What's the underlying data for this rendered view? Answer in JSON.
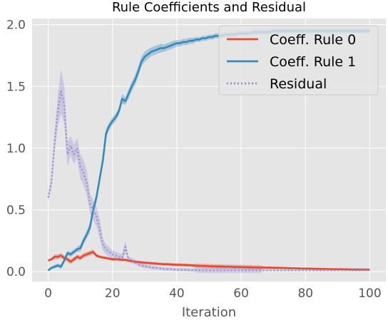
{
  "chart_data": {
    "type": "line",
    "title": "Rule Coefficients and Residual",
    "xlabel": "Iteration",
    "ylabel": "",
    "xlim": [
      -5,
      105
    ],
    "ylim": [
      -0.08,
      2.05
    ],
    "xticks": [
      0,
      20,
      40,
      60,
      80,
      100
    ],
    "yticks": [
      0.0,
      0.5,
      1.0,
      1.5,
      2.0
    ],
    "xtick_labels": [
      "0",
      "20",
      "40",
      "60",
      "80",
      "100"
    ],
    "ytick_labels": [
      "0.0",
      "0.5",
      "1.0",
      "1.5",
      "2.0"
    ],
    "grid": true,
    "legend_position": "top-right",
    "background": "#e5e5e5",
    "x": [
      0,
      1,
      2,
      3,
      4,
      5,
      6,
      7,
      8,
      9,
      10,
      11,
      12,
      13,
      14,
      15,
      16,
      17,
      18,
      19,
      20,
      21,
      22,
      23,
      24,
      25,
      26,
      27,
      28,
      29,
      30,
      31,
      32,
      33,
      34,
      35,
      36,
      37,
      38,
      39,
      40,
      41,
      42,
      43,
      44,
      45,
      46,
      47,
      48,
      49,
      50,
      51,
      52,
      53,
      54,
      55,
      56,
      57,
      58,
      59,
      60,
      61,
      62,
      63,
      64,
      65,
      66,
      67,
      68,
      69,
      70,
      71,
      72,
      73,
      74,
      75,
      76,
      77,
      78,
      79,
      80,
      81,
      82,
      83,
      84,
      85,
      86,
      87,
      88,
      89,
      90,
      91,
      92,
      93,
      94,
      95,
      96,
      97,
      98,
      99,
      100
    ],
    "series": [
      {
        "name": "Coeff. Rule 0",
        "color": "#e24a33",
        "style": "solid",
        "values": [
          0.09,
          0.1,
          0.12,
          0.12,
          0.13,
          0.11,
          0.1,
          0.08,
          0.1,
          0.12,
          0.11,
          0.13,
          0.14,
          0.15,
          0.16,
          0.13,
          0.12,
          0.115,
          0.11,
          0.105,
          0.1,
          0.1,
          0.098,
          0.096,
          0.095,
          0.09,
          0.085,
          0.08,
          0.078,
          0.075,
          0.072,
          0.07,
          0.068,
          0.066,
          0.064,
          0.062,
          0.06,
          0.06,
          0.058,
          0.057,
          0.056,
          0.055,
          0.054,
          0.053,
          0.052,
          0.05,
          0.048,
          0.047,
          0.046,
          0.045,
          0.044,
          0.043,
          0.042,
          0.042,
          0.041,
          0.04,
          0.04,
          0.039,
          0.038,
          0.038,
          0.037,
          0.036,
          0.036,
          0.035,
          0.034,
          0.034,
          0.033,
          0.033,
          0.032,
          0.032,
          0.031,
          0.031,
          0.03,
          0.03,
          0.029,
          0.028,
          0.027,
          0.027,
          0.026,
          0.025,
          0.025,
          0.024,
          0.024,
          0.023,
          0.023,
          0.022,
          0.022,
          0.021,
          0.021,
          0.02,
          0.02,
          0.02,
          0.019,
          0.019,
          0.018,
          0.018,
          0.018,
          0.017,
          0.017,
          0.017,
          0.016
        ],
        "band": [
          0.01,
          0.01,
          0.02,
          0.02,
          0.02,
          0.02,
          0.02,
          0.02,
          0.02,
          0.02,
          0.02,
          0.02,
          0.02,
          0.02,
          0.02,
          0.015,
          0.012,
          0.012,
          0.012,
          0.012,
          0.012,
          0.012,
          0.012,
          0.012,
          0.012,
          0.012,
          0.012,
          0.012,
          0.012,
          0.012,
          0.012,
          0.012,
          0.012,
          0.012,
          0.012,
          0.012,
          0.012,
          0.012,
          0.012,
          0.012,
          0.012,
          0.012,
          0.012,
          0.012,
          0.012,
          0.012,
          0.018,
          0.018,
          0.018,
          0.018,
          0.018,
          0.018,
          0.018,
          0.018,
          0.018,
          0.018,
          0.018,
          0.018,
          0.018,
          0.018,
          0.018,
          0.018,
          0.018,
          0.018,
          0.018,
          0.018,
          0.018,
          0.01,
          0.01,
          0.01,
          0.01,
          0.01,
          0.01,
          0.01,
          0.01,
          0.01,
          0.006,
          0.006,
          0.006,
          0.006,
          0.006,
          0.006,
          0.006,
          0.006,
          0.006,
          0.006,
          0.006,
          0.006,
          0.006,
          0.006,
          0.006,
          0.006,
          0.006,
          0.006,
          0.006,
          0.006,
          0.006,
          0.006,
          0.006,
          0.006,
          0.006
        ]
      },
      {
        "name": "Coeff. Rule 1",
        "color": "#348abd",
        "style": "solid",
        "values": [
          0.01,
          0.03,
          0.04,
          0.05,
          0.04,
          0.09,
          0.15,
          0.14,
          0.16,
          0.18,
          0.19,
          0.25,
          0.3,
          0.36,
          0.5,
          0.6,
          0.75,
          0.9,
          1.12,
          1.18,
          1.22,
          1.25,
          1.3,
          1.4,
          1.38,
          1.44,
          1.5,
          1.55,
          1.62,
          1.7,
          1.74,
          1.76,
          1.78,
          1.79,
          1.8,
          1.81,
          1.81,
          1.82,
          1.83,
          1.84,
          1.85,
          1.85,
          1.86,
          1.86,
          1.87,
          1.87,
          1.88,
          1.88,
          1.89,
          1.89,
          1.9,
          1.9,
          1.91,
          1.91,
          1.91,
          1.92,
          1.92,
          1.92,
          1.92,
          1.93,
          1.93,
          1.93,
          1.93,
          1.93,
          1.94,
          1.94,
          1.94,
          1.94,
          1.94,
          1.94,
          1.95,
          1.95,
          1.95,
          1.95,
          1.95,
          1.95,
          1.95,
          1.95,
          1.95,
          1.95,
          1.95,
          1.95,
          1.95,
          1.95,
          1.95,
          1.95,
          1.95,
          1.95,
          1.95,
          1.95,
          1.95,
          1.95,
          1.95,
          1.95,
          1.95,
          1.95,
          1.95,
          1.95,
          1.95,
          1.95,
          1.95
        ],
        "band": [
          0.01,
          0.01,
          0.015,
          0.015,
          0.02,
          0.02,
          0.02,
          0.02,
          0.02,
          0.02,
          0.03,
          0.03,
          0.03,
          0.04,
          0.04,
          0.04,
          0.04,
          0.04,
          0.04,
          0.03,
          0.03,
          0.03,
          0.03,
          0.04,
          0.03,
          0.04,
          0.04,
          0.04,
          0.04,
          0.04,
          0.04,
          0.04,
          0.035,
          0.035,
          0.035,
          0.035,
          0.03,
          0.03,
          0.03,
          0.03,
          0.025,
          0.025,
          0.025,
          0.025,
          0.025,
          0.025,
          0.02,
          0.02,
          0.02,
          0.02,
          0.02,
          0.02,
          0.02,
          0.02,
          0.02,
          0.02,
          0.02,
          0.02,
          0.02,
          0.02,
          0.02,
          0.02,
          0.02,
          0.02,
          0.02,
          0.02,
          0.02,
          0.02,
          0.02,
          0.02,
          0.02,
          0.02,
          0.02,
          0.02,
          0.02,
          0.02,
          0.02,
          0.02,
          0.02,
          0.02,
          0.02,
          0.02,
          0.02,
          0.02,
          0.02,
          0.02,
          0.02,
          0.02,
          0.02,
          0.02,
          0.02,
          0.02,
          0.02,
          0.02,
          0.02,
          0.02,
          0.02,
          0.02,
          0.02,
          0.02,
          0.02
        ]
      },
      {
        "name": "Residual",
        "color": "#988ed5",
        "style": "dotted",
        "values": [
          0.6,
          0.72,
          1.05,
          1.3,
          1.46,
          1.35,
          0.95,
          1.02,
          0.95,
          1.0,
          0.85,
          0.8,
          0.72,
          0.55,
          0.5,
          0.45,
          0.35,
          0.22,
          0.18,
          0.16,
          0.14,
          0.13,
          0.12,
          0.11,
          0.2,
          0.1,
          0.09,
          0.08,
          0.06,
          0.05,
          0.045,
          0.04,
          0.035,
          0.03,
          0.03,
          0.025,
          0.022,
          0.02,
          0.02,
          0.018,
          0.016,
          0.015,
          0.015,
          0.014,
          0.013,
          0.012,
          0.012,
          0.011,
          0.011,
          0.01,
          0.01,
          0.01,
          0.01,
          0.01,
          0.01,
          0.01,
          0.01,
          0.01,
          0.01,
          0.01,
          0.01,
          0.01,
          0.01,
          0.01,
          0.01,
          0.01,
          0.01,
          0.01,
          0.01,
          0.01,
          0.01,
          0.01,
          0.01,
          0.01,
          0.01,
          0.01,
          0.01,
          0.01,
          0.01,
          0.01,
          0.01,
          0.01,
          0.01,
          0.01,
          0.01,
          0.01,
          0.01,
          0.01,
          0.01,
          0.01,
          0.01,
          0.01,
          0.01,
          0.01,
          0.01,
          0.01,
          0.01,
          0.01,
          0.01,
          0.01,
          0.01
        ],
        "band": [
          0.03,
          0.05,
          0.08,
          0.12,
          0.18,
          0.15,
          0.1,
          0.08,
          0.08,
          0.08,
          0.1,
          0.1,
          0.1,
          0.08,
          0.08,
          0.08,
          0.08,
          0.05,
          0.04,
          0.04,
          0.03,
          0.03,
          0.03,
          0.03,
          0.05,
          0.02,
          0.02,
          0.02,
          0.015,
          0.015,
          0.015,
          0.015,
          0.015,
          0.015,
          0.012,
          0.012,
          0.012,
          0.012,
          0.012,
          0.012,
          0.012,
          0.012,
          0.012,
          0.012,
          0.012,
          0.012,
          0.02,
          0.02,
          0.02,
          0.02,
          0.02,
          0.02,
          0.02,
          0.02,
          0.02,
          0.02,
          0.02,
          0.02,
          0.02,
          0.02,
          0.02,
          0.02,
          0.02,
          0.02,
          0.02,
          0.02,
          0.02,
          0.005,
          0.005,
          0.005,
          0.005,
          0.005,
          0.005,
          0.005,
          0.005,
          0.005,
          0.005,
          0.005,
          0.005,
          0.005,
          0.005,
          0.005,
          0.005,
          0.005,
          0.005,
          0.005,
          0.005,
          0.005,
          0.005,
          0.005,
          0.005,
          0.005,
          0.005,
          0.005,
          0.005,
          0.005,
          0.005,
          0.005,
          0.005,
          0.005,
          0.005
        ]
      }
    ]
  }
}
